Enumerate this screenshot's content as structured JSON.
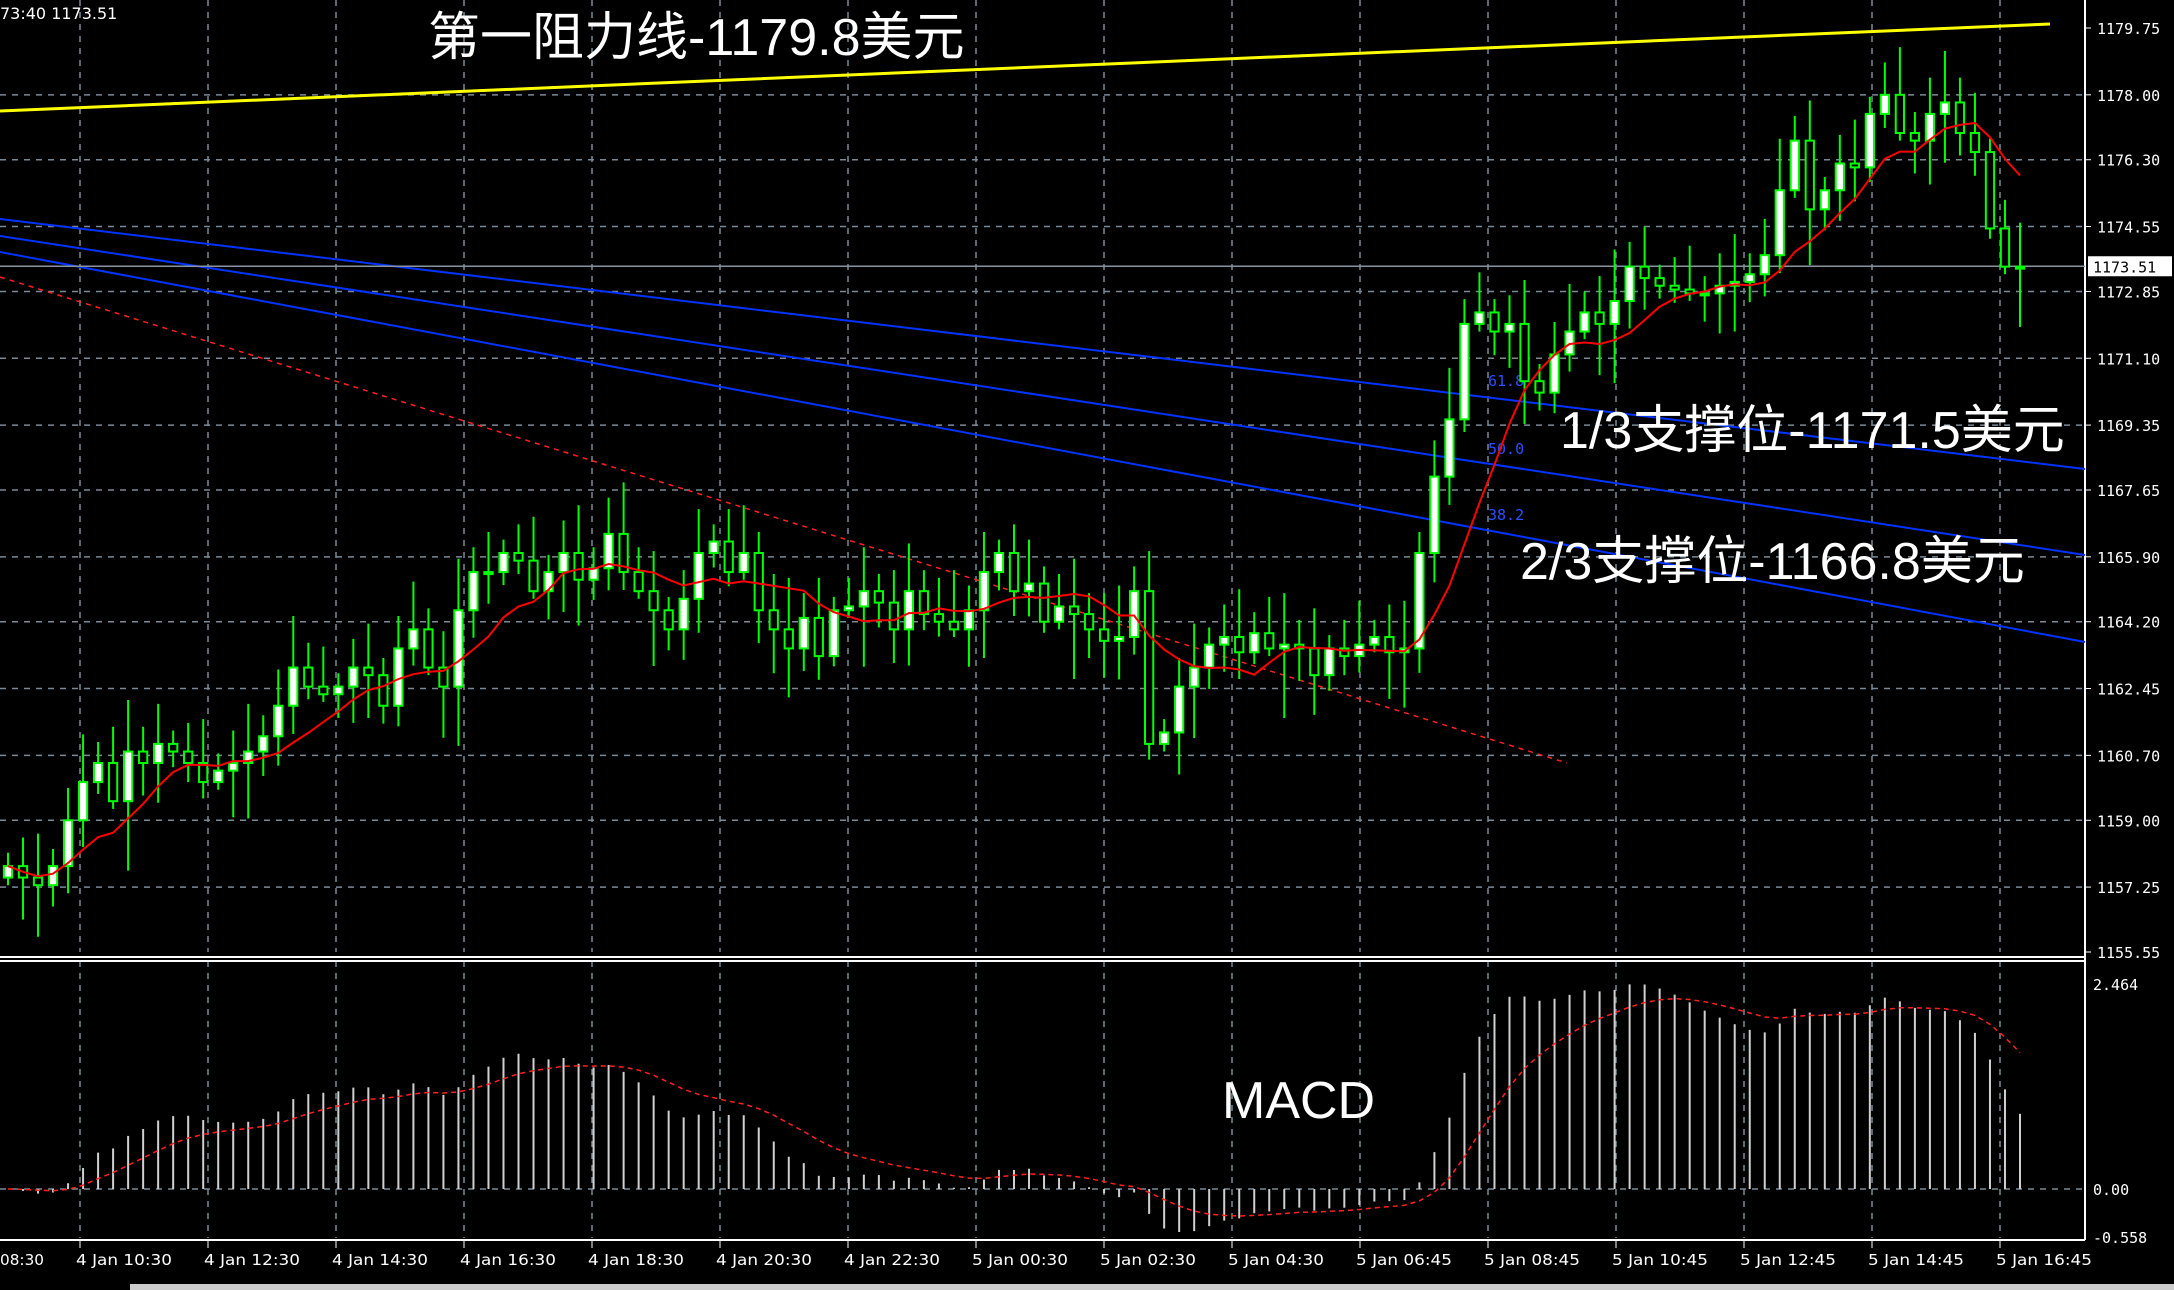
{
  "header": {
    "info": "73:40 1173.51"
  },
  "annotations": {
    "resistance": "第一阻力线-1179.8美元",
    "support1": "1/3支撑位-1171.5美元",
    "support2": "2/3支撑位-1166.8美元",
    "macd": "MACD"
  },
  "colors": {
    "bull": "#00ff00",
    "candle_fill_up": "#ffffff",
    "ma": "#ff0000",
    "resistance": "#ffff00",
    "channel": "#0033ff",
    "grid": "#7a8a96"
  },
  "chart_data": [
    {
      "type": "candlestick",
      "title": "",
      "price_axis_ticks": [
        "1179.75",
        "1178.00",
        "1176.30",
        "1174.55",
        "1172.85",
        "1171.10",
        "1169.35",
        "1167.65",
        "1165.90",
        "1164.20",
        "1162.45",
        "1160.70",
        "1159.00",
        "1157.25",
        "1155.55"
      ],
      "ylim": [
        1155.55,
        1179.75
      ],
      "current_price": "1173.51",
      "time_axis_ticks": [
        "08:30",
        "4 Jan 10:30",
        "4 Jan 12:30",
        "4 Jan 14:30",
        "4 Jan 16:30",
        "4 Jan 18:30",
        "4 Jan 20:30",
        "4 Jan 22:30",
        "5 Jan 00:30",
        "5 Jan 02:30",
        "5 Jan 04:30",
        "5 Jan 06:45",
        "5 Jan 08:45",
        "5 Jan 10:45",
        "5 Jan 12:45",
        "5 Jan 14:45",
        "5 Jan 16:45"
      ],
      "close": [
        1157.8,
        1157.5,
        1157.3,
        1157.8,
        1159,
        1160,
        1160.5,
        1159.5,
        1160.8,
        1160.5,
        1161,
        1160.8,
        1160.5,
        1160,
        1160.3,
        1160.5,
        1160.8,
        1161.2,
        1162,
        1163,
        1162.5,
        1162.3,
        1162.5,
        1163,
        1162.8,
        1162,
        1163.5,
        1164,
        1163,
        1162.5,
        1164.5,
        1165.5,
        1165.5,
        1166,
        1165.8,
        1165,
        1165.5,
        1166,
        1165.3,
        1165.6,
        1166.5,
        1165.5,
        1165,
        1164.5,
        1164,
        1164.8,
        1166,
        1166.3,
        1165.5,
        1166,
        1164.5,
        1164,
        1163.5,
        1164.3,
        1163.3,
        1164.5,
        1164.6,
        1165,
        1164.7,
        1164,
        1165,
        1164.4,
        1164.2,
        1164,
        1164.5,
        1165.5,
        1166,
        1165,
        1165.2,
        1164.2,
        1164.6,
        1164.4,
        1164,
        1163.7,
        1163.8,
        1165,
        1161,
        1161.3,
        1162.5,
        1163,
        1163.6,
        1163.8,
        1163.4,
        1163.9,
        1163.5,
        1163.6,
        1163.5,
        1162.8,
        1163.5,
        1163.3,
        1163.6,
        1163.8,
        1163.4,
        1163.5,
        1166,
        1168,
        1169.5,
        1172,
        1172.3,
        1171.8,
        1172,
        1170.5,
        1170.2,
        1171.2,
        1171.8,
        1172.3,
        1172,
        1172.6,
        1173.5,
        1173.2,
        1173,
        1172.9,
        1172.8,
        1172.8,
        1173,
        1173.1,
        1173.3,
        1173.8,
        1175.5,
        1176.8,
        1175,
        1175.5,
        1176.2,
        1176.1,
        1177.5,
        1178,
        1177,
        1176.8,
        1177.5,
        1177.8,
        1177,
        1176.5,
        1174.5,
        1173.5,
        1173.5
      ],
      "fib_levels": [
        "61.8",
        "50.0",
        "38.2"
      ],
      "resistance_level": 1179.8,
      "support_levels": [
        1171.5,
        1166.8
      ]
    },
    {
      "type": "macd",
      "axis_ticks": [
        "2.464",
        "0.00",
        "-0.558"
      ],
      "ylim": [
        -0.558,
        2.464
      ],
      "label": "MACD"
    }
  ]
}
